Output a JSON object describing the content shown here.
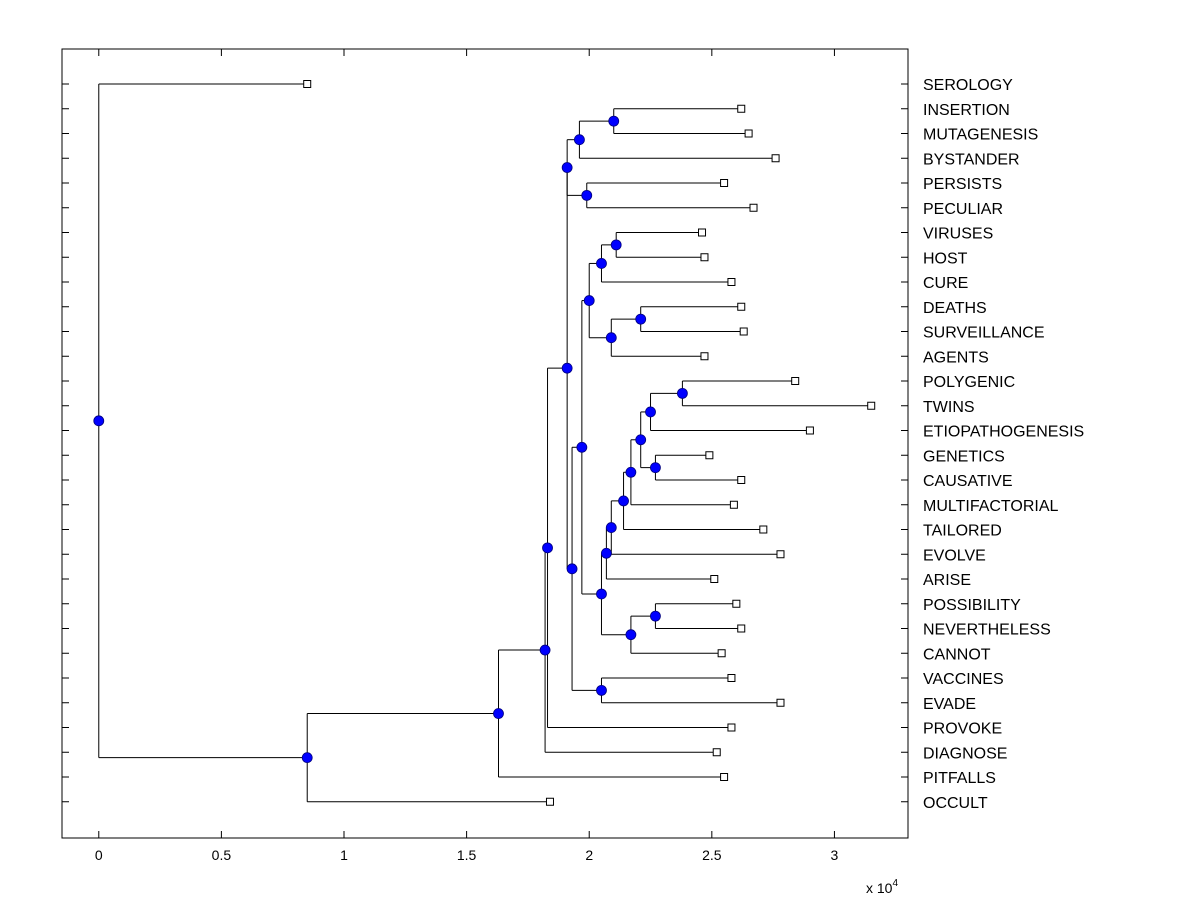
{
  "chart_data": {
    "type": "dendrogram",
    "orientation": "horizontal",
    "xlim": [
      -0.15,
      3.3
    ],
    "xticks": [
      0,
      0.5,
      1,
      1.5,
      2,
      2.5,
      3
    ],
    "xtick_labels": [
      "0",
      "0.5",
      "1",
      "1.5",
      "2",
      "2.5",
      "3"
    ],
    "x_multiplier_label": "x 10",
    "x_multiplier_exponent": "4",
    "colors": {
      "node_fill": "#0000ff",
      "line": "#000000",
      "leaf_marker_fill": "#ffffff"
    },
    "leaves": [
      {
        "id": "SEROLOGY",
        "x": 0.85
      },
      {
        "id": "INSERTION",
        "x": 2.62
      },
      {
        "id": "MUTAGENESIS",
        "x": 2.65
      },
      {
        "id": "BYSTANDER",
        "x": 2.76
      },
      {
        "id": "PERSISTS",
        "x": 2.55
      },
      {
        "id": "PECULIAR",
        "x": 2.67
      },
      {
        "id": "VIRUSES",
        "x": 2.46
      },
      {
        "id": "HOST",
        "x": 2.47
      },
      {
        "id": "CURE",
        "x": 2.58
      },
      {
        "id": "DEATHS",
        "x": 2.62
      },
      {
        "id": "SURVEILLANCE",
        "x": 2.63
      },
      {
        "id": "AGENTS",
        "x": 2.47
      },
      {
        "id": "POLYGENIC",
        "x": 2.84
      },
      {
        "id": "TWINS",
        "x": 3.15
      },
      {
        "id": "ETIOPATHOGENESIS",
        "x": 2.9
      },
      {
        "id": "GENETICS",
        "x": 2.49
      },
      {
        "id": "CAUSATIVE",
        "x": 2.62
      },
      {
        "id": "MULTIFACTORIAL",
        "x": 2.59
      },
      {
        "id": "TAILORED",
        "x": 2.71
      },
      {
        "id": "EVOLVE",
        "x": 2.78
      },
      {
        "id": "ARISE",
        "x": 2.51
      },
      {
        "id": "POSSIBILITY",
        "x": 2.6
      },
      {
        "id": "NEVERTHELESS",
        "x": 2.62
      },
      {
        "id": "CANNOT",
        "x": 2.54
      },
      {
        "id": "VACCINES",
        "x": 2.58
      },
      {
        "id": "EVADE",
        "x": 2.78
      },
      {
        "id": "PROVOKE",
        "x": 2.58
      },
      {
        "id": "DIAGNOSE",
        "x": 2.52
      },
      {
        "id": "PITFALLS",
        "x": 2.55
      },
      {
        "id": "OCCULT",
        "x": 1.84
      }
    ],
    "internal_nodes": [
      {
        "id": "n_ins_mut",
        "x": 2.1,
        "children": [
          "INSERTION",
          "MUTAGENESIS"
        ]
      },
      {
        "id": "n_ins_mut_bys",
        "x": 1.96,
        "children": [
          "n_ins_mut",
          "BYSTANDER"
        ]
      },
      {
        "id": "n_per_pec",
        "x": 1.99,
        "children": [
          "PERSISTS",
          "PECULIAR"
        ]
      },
      {
        "id": "n_top_group",
        "x": 1.91,
        "children": [
          "n_ins_mut_bys",
          "n_per_pec"
        ]
      },
      {
        "id": "n_vir_host",
        "x": 2.11,
        "children": [
          "VIRUSES",
          "HOST"
        ]
      },
      {
        "id": "n_vir_host_cure",
        "x": 2.05,
        "children": [
          "n_vir_host",
          "CURE"
        ]
      },
      {
        "id": "n_dea_sur",
        "x": 2.21,
        "children": [
          "DEATHS",
          "SURVEILLANCE"
        ]
      },
      {
        "id": "n_dea_sur_age",
        "x": 2.09,
        "children": [
          "n_dea_sur",
          "AGENTS"
        ]
      },
      {
        "id": "n_virus_group",
        "x": 2.0,
        "children": [
          "n_vir_host_cure",
          "n_dea_sur_age"
        ]
      },
      {
        "id": "n_pol_twi",
        "x": 2.38,
        "children": [
          "POLYGENIC",
          "TWINS"
        ]
      },
      {
        "id": "n_pol_twi_eti",
        "x": 2.25,
        "children": [
          "n_pol_twi",
          "ETIOPATHOGENESIS"
        ]
      },
      {
        "id": "n_gen_cau",
        "x": 2.27,
        "children": [
          "GENETICS",
          "CAUSATIVE"
        ]
      },
      {
        "id": "n_genetics_group",
        "x": 2.21,
        "children": [
          "n_pol_twi_eti",
          "n_gen_cau"
        ]
      },
      {
        "id": "n_plus_multi",
        "x": 2.17,
        "children": [
          "n_genetics_group",
          "MULTIFACTORIAL"
        ]
      },
      {
        "id": "n_plus_tailored",
        "x": 2.14,
        "children": [
          "n_plus_multi",
          "TAILORED"
        ]
      },
      {
        "id": "n_plus_evolve",
        "x": 2.09,
        "children": [
          "n_plus_tailored",
          "EVOLVE"
        ]
      },
      {
        "id": "n_plus_arise",
        "x": 2.07,
        "children": [
          "n_plus_evolve",
          "ARISE"
        ]
      },
      {
        "id": "n_pos_nev",
        "x": 2.27,
        "children": [
          "POSSIBILITY",
          "NEVERTHELESS"
        ]
      },
      {
        "id": "n_pos_nev_can",
        "x": 2.17,
        "children": [
          "n_pos_nev",
          "CANNOT"
        ]
      },
      {
        "id": "n_middle_group",
        "x": 2.05,
        "children": [
          "n_plus_arise",
          "n_pos_nev_can"
        ]
      },
      {
        "id": "n_virus_middle",
        "x": 1.97,
        "children": [
          "n_virus_group",
          "n_middle_group"
        ]
      },
      {
        "id": "n_vac_eva",
        "x": 2.05,
        "children": [
          "VACCINES",
          "EVADE"
        ]
      },
      {
        "id": "n_main_vac",
        "x": 1.93,
        "children": [
          "n_virus_middle",
          "n_vac_eva"
        ]
      },
      {
        "id": "n_upper_all",
        "x": 1.91,
        "children": [
          "n_top_group",
          "n_main_vac"
        ]
      },
      {
        "id": "n_plus_provoke",
        "x": 1.83,
        "children": [
          "n_upper_all",
          "PROVOKE"
        ]
      },
      {
        "id": "n_plus_diagnose",
        "x": 1.82,
        "children": [
          "n_plus_provoke",
          "DIAGNOSE"
        ]
      },
      {
        "id": "n_plus_pitfalls",
        "x": 1.63,
        "children": [
          "n_plus_diagnose",
          "PITFALLS"
        ]
      },
      {
        "id": "n_plus_occult",
        "x": 0.85,
        "children": [
          "n_plus_pitfalls",
          "OCCULT"
        ]
      },
      {
        "id": "root",
        "x": 0.0,
        "children": [
          "SEROLOGY",
          "n_plus_occult"
        ]
      }
    ]
  }
}
